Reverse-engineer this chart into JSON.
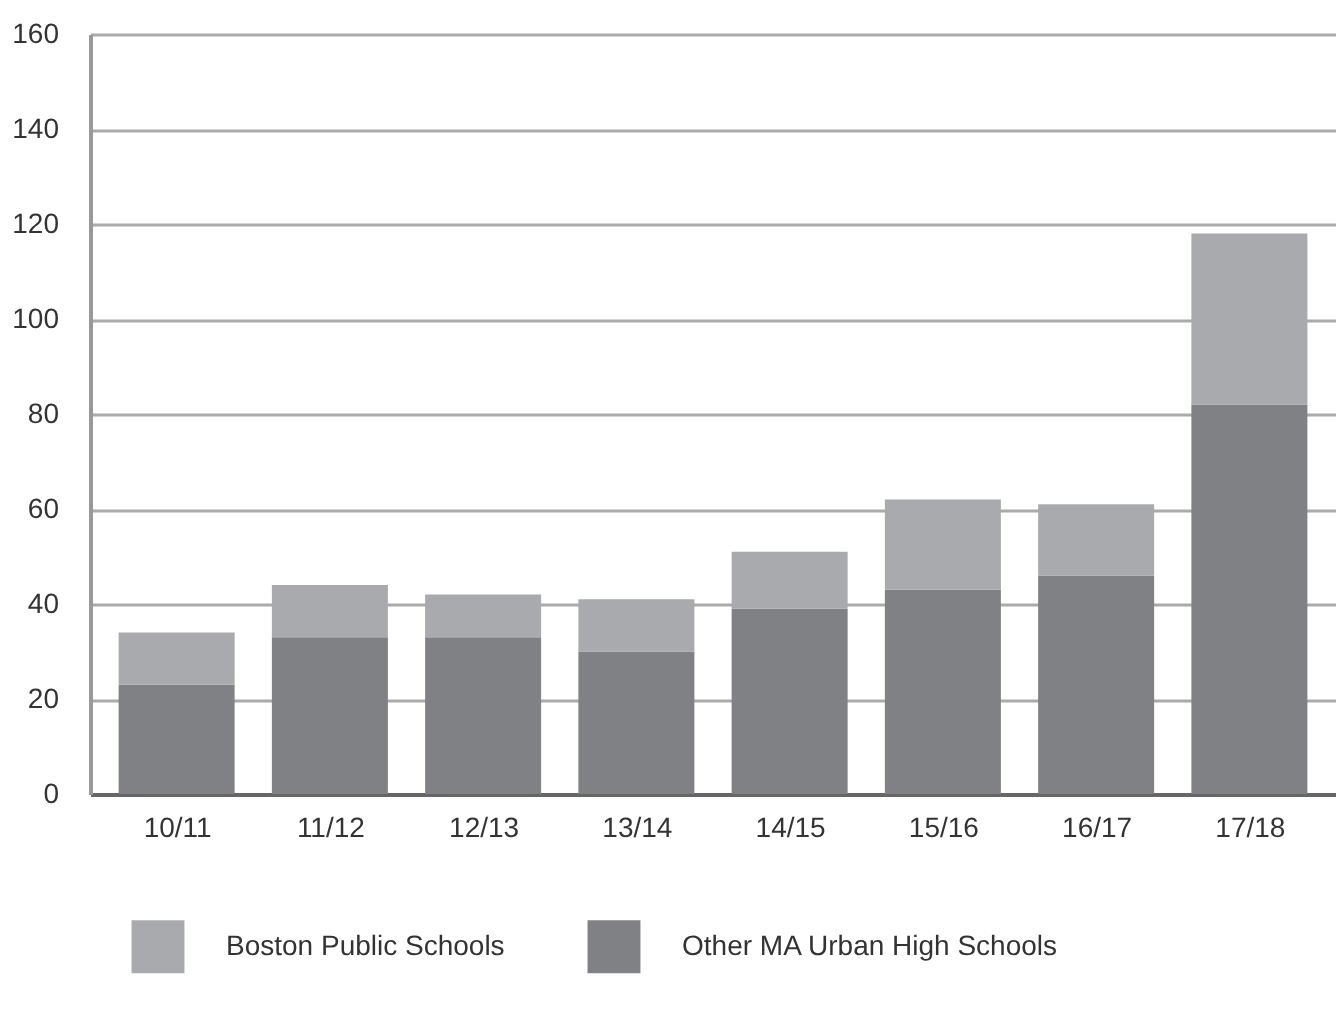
{
  "chart_data": {
    "type": "bar",
    "stacked": true,
    "categories": [
      "10/11",
      "11/12",
      "12/13",
      "13/14",
      "14/15",
      "15/16",
      "16/17",
      "17/18"
    ],
    "series": [
      {
        "name": "Other MA Urban High Schools",
        "color": "#808184",
        "values": [
          23,
          33,
          33,
          30,
          39,
          43,
          46,
          82
        ]
      },
      {
        "name": "Boston Public Schools",
        "color": "#a9aaad",
        "values": [
          11,
          11,
          9,
          11,
          12,
          19,
          15,
          36
        ]
      }
    ],
    "ylim": [
      0,
      160
    ],
    "yticks": [
      0,
      20,
      40,
      60,
      80,
      100,
      120,
      140,
      160
    ],
    "grid": "y",
    "legend": "bottom"
  }
}
